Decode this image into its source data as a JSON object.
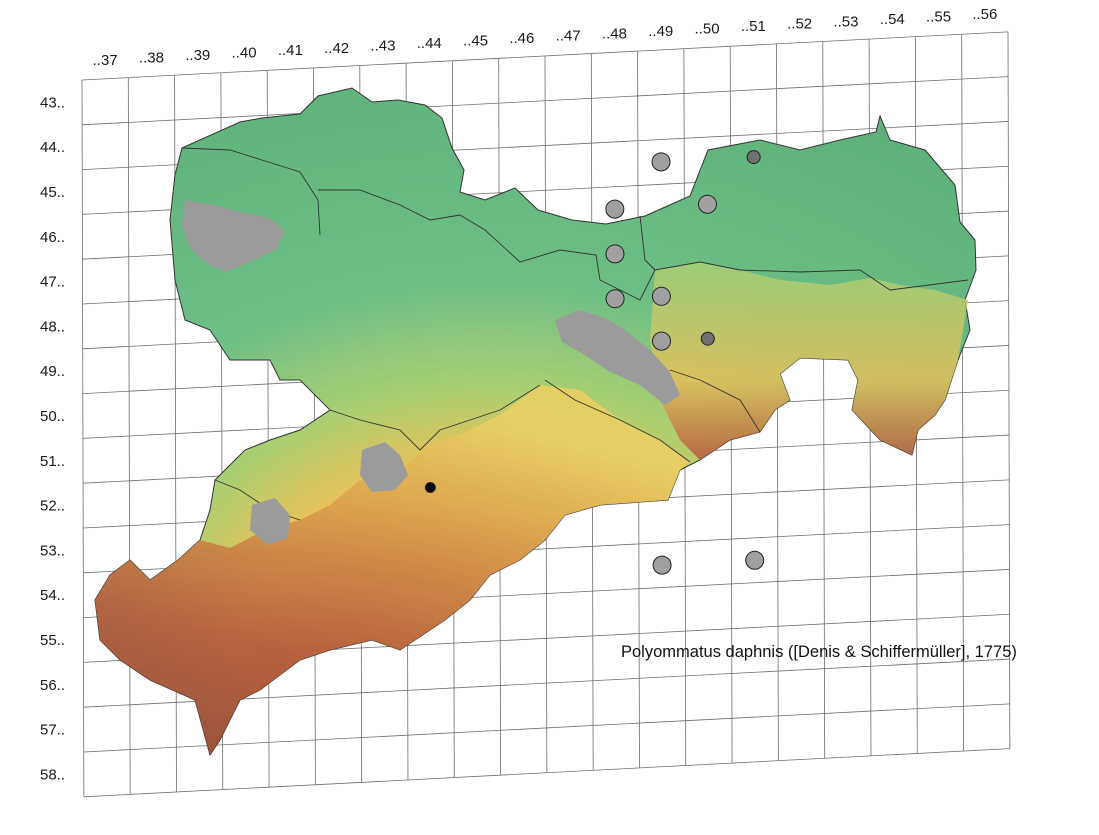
{
  "column_labels": [
    "..37",
    "..38",
    "..39",
    "..40",
    "..41",
    "..42",
    "..43",
    "..44",
    "..45",
    "..46",
    "..47",
    "..48",
    "..49",
    "..50",
    "..51",
    "..52",
    "..53",
    "..54",
    "..55",
    "..56"
  ],
  "row_labels": [
    "43..",
    "44..",
    "45..",
    "46..",
    "47..",
    "48..",
    "49..",
    "50..",
    "51..",
    "52..",
    "53..",
    "54..",
    "55..",
    "56..",
    "57..",
    "58.."
  ],
  "caption": "Polyommatus daphnis ([Denis & Schiffermüller], 1775)",
  "colors": {
    "lowland": "#6bbf84",
    "midland": "#e8c95a",
    "upland": "#c9683e",
    "highland": "#9a4a38",
    "urban_areas": "#9b9b9b",
    "record_marker": "#a0a0a0",
    "record_marker_dark": "#707070",
    "record_marker_black": "#000000"
  },
  "records": [
    {
      "cell": "46..48",
      "type": "grey"
    },
    {
      "cell": "47..48",
      "type": "grey"
    },
    {
      "cell": "48..48",
      "type": "grey"
    },
    {
      "cell": "48..49",
      "type": "grey"
    },
    {
      "cell": "49..49",
      "type": "grey"
    },
    {
      "cell": "45..49",
      "type": "grey"
    },
    {
      "cell": "46..50",
      "type": "grey"
    },
    {
      "cell": "54..49",
      "type": "grey"
    },
    {
      "cell": "54..51",
      "type": "grey"
    },
    {
      "cell": "49..50",
      "type": "dark"
    },
    {
      "cell": "45..51",
      "type": "dark"
    },
    {
      "cell": "52..44",
      "type": "black"
    }
  ]
}
